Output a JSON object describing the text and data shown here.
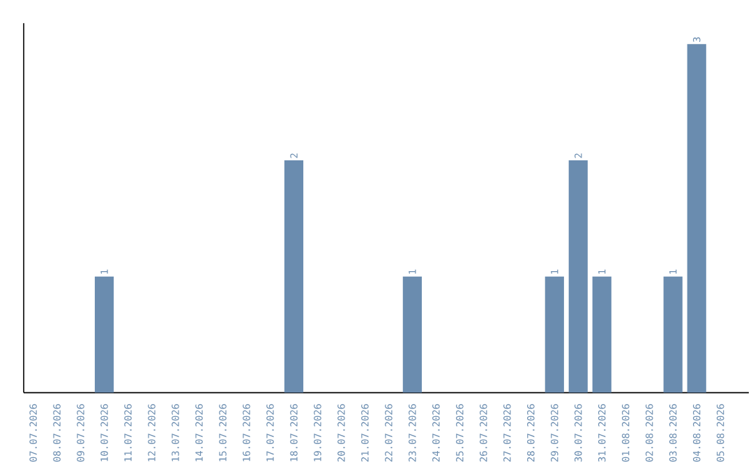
{
  "chart_data": {
    "type": "bar",
    "color": "#6a8caf",
    "categories": [
      "07.07.2026",
      "08.07.2026",
      "09.07.2026",
      "10.07.2026",
      "11.07.2026",
      "12.07.2026",
      "13.07.2026",
      "14.07.2026",
      "15.07.2026",
      "16.07.2026",
      "17.07.2026",
      "18.07.2026",
      "19.07.2026",
      "20.07.2026",
      "21.07.2026",
      "22.07.2026",
      "23.07.2026",
      "24.07.2026",
      "25.07.2026",
      "26.07.2026",
      "27.07.2026",
      "28.07.2026",
      "29.07.2026",
      "30.07.2026",
      "31.07.2026",
      "01.08.2026",
      "02.08.2026",
      "03.08.2026",
      "04.08.2026",
      "05.08.2026"
    ],
    "values": [
      0,
      0,
      0,
      1,
      0,
      0,
      0,
      0,
      0,
      0,
      0,
      2,
      0,
      0,
      0,
      0,
      1,
      0,
      0,
      0,
      0,
      0,
      1,
      2,
      1,
      0,
      0,
      1,
      3,
      0
    ],
    "value_labels": [
      null,
      null,
      null,
      "1",
      null,
      null,
      null,
      null,
      null,
      null,
      null,
      "2",
      null,
      null,
      null,
      null,
      "1",
      null,
      null,
      null,
      null,
      null,
      "1",
      "2",
      "1",
      null,
      null,
      "1",
      "3",
      null
    ],
    "tick_labels": "x"
  }
}
